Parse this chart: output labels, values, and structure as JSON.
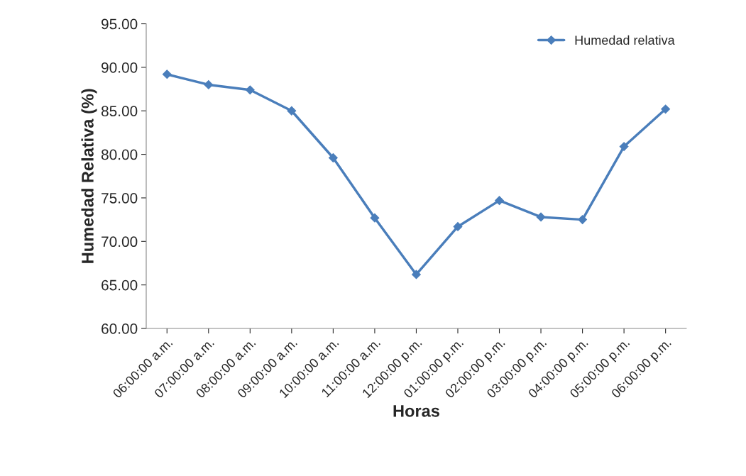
{
  "chart_data": {
    "type": "line",
    "xlabel": "Horas",
    "ylabel": "Humedad Relativa (%)",
    "categories": [
      "06:00:00 a.m.",
      "07:00:00 a.m.",
      "08:00:00 a.m.",
      "09:00:00 a.m.",
      "10:00:00 a.m.",
      "11:00:00 a.m.",
      "12:00:00 p.m.",
      "01:00:00 p.m.",
      "02:00:00 p.m.",
      "03:00:00 p.m.",
      "04:00:00 p.m.",
      "05:00:00 p.m.",
      "06:00:00 p.m."
    ],
    "series": [
      {
        "name": "Humedad relativa",
        "color": "#4a7ebb",
        "values": [
          89.2,
          88.0,
          87.4,
          85.0,
          79.6,
          72.7,
          66.2,
          71.7,
          74.7,
          72.8,
          72.5,
          80.9,
          85.2
        ]
      }
    ],
    "ylim": [
      60,
      95
    ],
    "yticks": [
      {
        "value": 60,
        "label": "60.00"
      },
      {
        "value": 65,
        "label": "65.00"
      },
      {
        "value": 70,
        "label": "70.00"
      },
      {
        "value": 75,
        "label": "75.00"
      },
      {
        "value": 80,
        "label": "80.00"
      },
      {
        "value": 85,
        "label": "85.00"
      },
      {
        "value": 90,
        "label": "90.00"
      },
      {
        "value": 95,
        "label": "95.00"
      }
    ],
    "grid": false,
    "legend": "top right",
    "marker": "diamond",
    "line_style": "solid"
  }
}
